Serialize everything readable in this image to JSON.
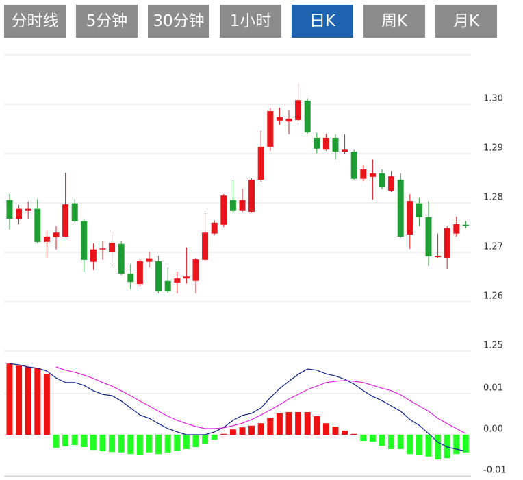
{
  "tabs": [
    "分时线",
    "5分钟",
    "30分钟",
    "1小时",
    "日K",
    "周K",
    "月K"
  ],
  "active_tab": 4,
  "chart_data": [
    {
      "type": "candlestick",
      "up_color": "#e8161c",
      "down_color": "#1e9e32",
      "open": [
        1.2806,
        1.2768,
        1.2785,
        1.2788,
        1.2721,
        1.2731,
        1.2732,
        1.2799,
        1.2763,
        1.2681,
        1.2706,
        1.27,
        1.2717,
        1.2657,
        1.2636,
        1.2681,
        1.2682,
        1.2642,
        1.2639,
        1.2647,
        1.2642,
        1.2685,
        1.2738,
        1.2756,
        1.2806,
        1.2785,
        1.2782,
        1.2847,
        1.2914,
        1.2967,
        1.2965,
        1.2968,
        1.3007,
        1.2932,
        1.2908,
        1.2932,
        1.2904,
        1.2904,
        1.2849,
        1.2853,
        1.286,
        1.2825,
        1.2847,
        1.2736,
        1.2799,
        1.2771,
        1.269,
        1.2689,
        1.2738,
        1.2756
      ],
      "high": [
        1.2818,
        1.2796,
        1.2803,
        1.2808,
        1.2744,
        1.2753,
        1.2861,
        1.2808,
        1.2767,
        1.2718,
        1.2722,
        1.2742,
        1.2722,
        1.2676,
        1.2686,
        1.2701,
        1.2693,
        1.2669,
        1.2661,
        1.271,
        1.2689,
        1.2779,
        1.2765,
        1.2818,
        1.2846,
        1.2829,
        1.285,
        1.2947,
        1.2992,
        1.2993,
        1.2988,
        1.3044,
        1.3012,
        1.2942,
        1.294,
        1.2939,
        1.2939,
        1.2908,
        1.2878,
        1.2888,
        1.2868,
        1.2864,
        1.286,
        1.2818,
        1.281,
        1.2804,
        1.2738,
        1.2753,
        1.2772,
        1.2763
      ],
      "low": [
        1.2746,
        1.2757,
        1.2767,
        1.2718,
        1.2689,
        1.2706,
        1.2731,
        1.276,
        1.266,
        1.2664,
        1.2685,
        1.2668,
        1.2654,
        1.2625,
        1.2631,
        1.2669,
        1.2617,
        1.2617,
        1.2617,
        1.2637,
        1.2617,
        1.2682,
        1.2735,
        1.2751,
        1.2781,
        1.2781,
        1.2781,
        1.2843,
        1.2906,
        1.2958,
        1.2939,
        1.2965,
        1.294,
        1.2901,
        1.2906,
        1.2888,
        1.29,
        1.2847,
        1.2844,
        1.2807,
        1.2828,
        1.2822,
        1.2729,
        1.2707,
        1.2753,
        1.2672,
        1.2689,
        1.2667,
        1.2732,
        1.2749
      ],
      "close": [
        1.2768,
        1.2788,
        1.2788,
        1.2721,
        1.2732,
        1.274,
        1.2797,
        1.2763,
        1.2685,
        1.2706,
        1.2708,
        1.2719,
        1.2657,
        1.264,
        1.2682,
        1.2688,
        1.2621,
        1.2621,
        1.2647,
        1.2651,
        1.2686,
        1.274,
        1.276,
        1.2815,
        1.2785,
        1.2806,
        1.2847,
        1.2914,
        1.2986,
        1.2974,
        1.2971,
        1.3008,
        1.2943,
        1.291,
        1.2932,
        1.2904,
        1.2908,
        1.2849,
        1.2868,
        1.286,
        1.2833,
        1.2854,
        1.2732,
        1.2804,
        1.2771,
        1.2692,
        1.2693,
        1.2749,
        1.2757,
        1.2755
      ],
      "ylim": [
        1.25,
        1.31
      ],
      "yticks": [
        {
          "value": 1.25,
          "label": "1.25"
        },
        {
          "value": 1.26,
          "label": "1.26"
        },
        {
          "value": 1.27,
          "label": "1.27"
        },
        {
          "value": 1.28,
          "label": "1.28"
        },
        {
          "value": 1.29,
          "label": "1.29"
        },
        {
          "value": 1.3,
          "label": "1.30"
        }
      ],
      "grid": true
    },
    {
      "type": "macd",
      "ylim": [
        -0.01,
        0.02
      ],
      "yticks": [
        {
          "value": -0.01,
          "label": "-0.01"
        },
        {
          "value": 0,
          "label": "0.00"
        },
        0.01
      ],
      "grid": true,
      "histogram": {
        "up_color": "#ee1111",
        "down_color": "#22ff22",
        "values": [
          0.0173,
          0.0168,
          0.0165,
          0.0162,
          0.0148,
          -0.0032,
          -0.0028,
          -0.0025,
          -0.003,
          -0.0037,
          -0.004,
          -0.0042,
          -0.0043,
          -0.0047,
          -0.005,
          -0.0043,
          -0.0047,
          -0.0043,
          -0.004,
          -0.0035,
          -0.003,
          -0.0023,
          -0.0012,
          0.0002,
          0.0013,
          0.0018,
          0.0022,
          0.0028,
          0.004,
          0.0052,
          0.0055,
          0.0055,
          0.0055,
          0.0045,
          0.0028,
          0.002,
          0.001,
          0.0002,
          -0.0015,
          -0.0017,
          -0.0027,
          -0.0035,
          -0.0035,
          -0.0047,
          -0.005,
          -0.0053,
          -0.006,
          -0.0057,
          -0.0047,
          -0.0043
        ]
      },
      "series": [
        {
          "color": "#0b1f8c",
          "values": [
            0.0173,
            0.017,
            0.0165,
            0.0162,
            0.0155,
            0.0138,
            0.0127,
            0.0127,
            0.012,
            0.0107,
            0.0098,
            0.0095,
            0.0082,
            0.0065,
            0.0048,
            0.004,
            0.0027,
            0.0015,
            0.0007,
            0,
            0,
            0,
            0.0007,
            0.0018,
            0.0035,
            0.0047,
            0.0052,
            0.0065,
            0.009,
            0.0112,
            0.013,
            0.0147,
            0.016,
            0.0157,
            0.0148,
            0.0143,
            0.0135,
            0.0123,
            0.0107,
            0.0093,
            0.0083,
            0.007,
            0.0057,
            0.0037,
            0.0023,
            0.0003,
            -0.0018,
            -0.003,
            -0.0035,
            -0.004
          ]
        },
        {
          "color": "#e020e0",
          "values": [
            null,
            null,
            null,
            null,
            null,
            0.0165,
            0.0157,
            0.0152,
            0.0145,
            0.0137,
            0.0127,
            0.0118,
            0.0107,
            0.0095,
            0.0082,
            0.007,
            0.0057,
            0.0045,
            0.0035,
            0.0027,
            0.002,
            0.0015,
            0.0015,
            0.0017,
            0.0022,
            0.0028,
            0.0037,
            0.0048,
            0.006,
            0.0073,
            0.0087,
            0.0098,
            0.011,
            0.0118,
            0.0127,
            0.013,
            0.0132,
            0.013,
            0.0127,
            0.012,
            0.0113,
            0.0107,
            0.0097,
            0.0083,
            0.007,
            0.0057,
            0.004,
            0.0027,
            0.0015,
            0.0003
          ]
        }
      ]
    }
  ]
}
